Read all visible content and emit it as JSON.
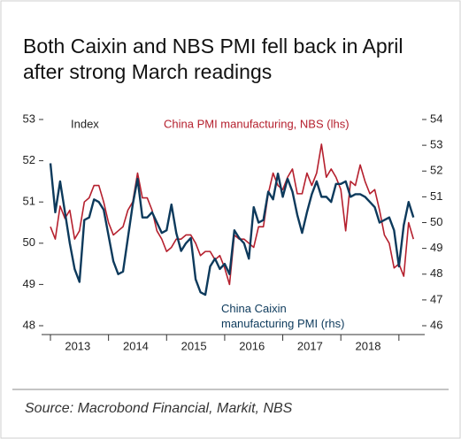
{
  "chart_data": {
    "type": "line",
    "title": "Both Caixin and NBS PMI fell back in April after strong March readings",
    "y_label": "Index",
    "source": "Source: Macrobond Financial, Markit, NBS",
    "categories": [
      null,
      null,
      null,
      null,
      null,
      null,
      "2013",
      null,
      null,
      null,
      null,
      null,
      null,
      null,
      null,
      null,
      null,
      null,
      "2014",
      null,
      null,
      null,
      null,
      null,
      null,
      null,
      null,
      null,
      null,
      null,
      "2015",
      null,
      null,
      null,
      null,
      null,
      null,
      null,
      null,
      null,
      null,
      null,
      "2016",
      null,
      null,
      null,
      null,
      null,
      null,
      null,
      null,
      null,
      null,
      null,
      "2017",
      null,
      null,
      null,
      null,
      null,
      null,
      null,
      null,
      null,
      null,
      null,
      "2018",
      null,
      null,
      null,
      null,
      null,
      null,
      null,
      null,
      null
    ],
    "ylim": [
      48,
      53
    ],
    "yticks": [
      48,
      49,
      50,
      51,
      52,
      53
    ],
    "y2lim": [
      46,
      54
    ],
    "y2ticks": [
      46,
      47,
      48,
      49,
      50,
      51,
      52,
      53,
      54
    ],
    "series": [
      {
        "name": "China PMI manufacturing, NBS (lhs)",
        "color": "#b5202e",
        "axis": "y",
        "values": [
          50.4,
          50.1,
          50.9,
          50.6,
          50.8,
          50.1,
          50.3,
          51.0,
          51.1,
          51.4,
          51.4,
          51.0,
          50.5,
          50.2,
          50.3,
          50.4,
          50.8,
          51.0,
          51.7,
          51.1,
          51.1,
          50.8,
          50.3,
          50.1,
          49.8,
          49.9,
          50.1,
          50.1,
          50.2,
          50.2,
          50.0,
          49.7,
          49.8,
          49.8,
          49.6,
          49.7,
          49.4,
          49.0,
          50.2,
          50.1,
          50.1,
          50.0,
          49.9,
          50.4,
          50.4,
          51.2,
          51.7,
          51.4,
          51.3,
          51.6,
          51.8,
          51.2,
          51.2,
          51.7,
          51.4,
          51.7,
          52.4,
          51.6,
          51.8,
          51.6,
          51.3,
          50.3,
          51.5,
          51.4,
          51.9,
          51.5,
          51.2,
          51.3,
          50.8,
          50.2,
          50.0,
          49.4,
          49.5,
          49.2,
          50.5,
          50.1
        ]
      },
      {
        "name": "China Caixin manufacturing PMI (rhs)",
        "color": "#0d3a5c",
        "axis": "y2",
        "values": [
          52.3,
          50.4,
          51.6,
          50.4,
          49.2,
          48.2,
          47.7,
          50.1,
          50.2,
          50.9,
          50.8,
          50.5,
          49.5,
          48.5,
          48.0,
          48.1,
          49.4,
          50.7,
          51.7,
          50.2,
          50.2,
          50.4,
          50.0,
          49.6,
          49.7,
          50.7,
          49.6,
          48.9,
          49.2,
          49.4,
          47.8,
          47.3,
          47.2,
          48.3,
          48.6,
          48.2,
          48.4,
          48.0,
          49.7,
          49.4,
          49.2,
          48.6,
          50.6,
          50.0,
          50.1,
          51.2,
          50.9,
          51.9,
          51.0,
          51.7,
          51.2,
          50.3,
          49.6,
          50.4,
          51.1,
          51.6,
          51.0,
          51.0,
          50.8,
          51.5,
          51.5,
          51.6,
          51.0,
          51.1,
          51.1,
          51.0,
          50.8,
          50.6,
          50.0,
          50.1,
          50.2,
          49.7,
          48.3,
          49.9,
          50.8,
          50.2
        ]
      }
    ]
  }
}
